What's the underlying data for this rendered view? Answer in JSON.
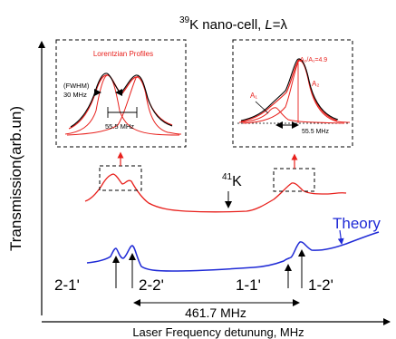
{
  "chart_data": {
    "type": "line",
    "title": {
      "sup": "39",
      "element": "K",
      "rest": "  nano-cell,",
      "L_symbol": "L",
      "eq": "=λ"
    },
    "ylabel": "Transmission(arb.un)",
    "xlabel": "Laser Frequency detunung, MHz",
    "grid": false,
    "series": [
      {
        "name": "",
        "color": "#e8201c",
        "style": "experiment"
      },
      {
        "name": "Theory",
        "color": "#1f2ad6",
        "style": "theory"
      }
    ],
    "transitions": [
      "2-1'",
      "2-2'",
      "1-1'",
      "1-2'"
    ],
    "isotope_marker": {
      "sup": "41",
      "element": "K"
    },
    "separation_label": "461.7 MHz",
    "insets": [
      {
        "title": "Lorentzian Profiles",
        "fwhm_label": "(FWHM)",
        "fwhm_value": "30 MHz",
        "spacing_label": "55.5 MHz"
      },
      {
        "ratio_label": "A₂/A₁=4.9",
        "peak_a1": "A₁",
        "peak_a2": "A₂",
        "spacing_label": "55.5 MHz"
      }
    ]
  }
}
